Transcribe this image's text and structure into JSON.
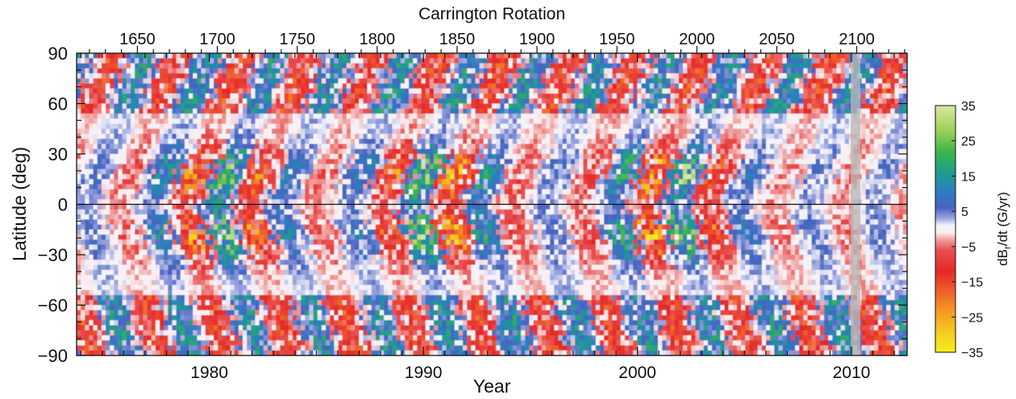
{
  "chart_data": {
    "type": "heatmap",
    "title": "",
    "top_axis": {
      "label": "Carrington Rotation",
      "ticks": [
        1650,
        1700,
        1750,
        1800,
        1850,
        1900,
        1950,
        2000,
        2050,
        2100
      ],
      "tick_labels": [
        "1650",
        "1700",
        "1750",
        "1800",
        "1850",
        "1900",
        "1950",
        "2000",
        "2050",
        "2100"
      ],
      "minor_step": 10
    },
    "xlabel": "Year",
    "x_ticks": [
      1980,
      1990,
      2000,
      2010
    ],
    "x_tick_labels": [
      "1980",
      "1990",
      "2000",
      "2010"
    ],
    "xlim": [
      1973.8,
      2012.6
    ],
    "ylabel": "Latitude (deg)",
    "y_ticks": [
      90,
      60,
      30,
      0,
      -30,
      -60,
      -90
    ],
    "y_tick_labels": [
      "90",
      "60",
      "30",
      "0",
      "−30",
      "−60",
      "−90"
    ],
    "ylim": [
      -90,
      90
    ],
    "colorbar": {
      "label_main": "dB",
      "label_sub": "r",
      "label_rest": "/dt (G/yr)",
      "ticks": [
        35,
        25,
        15,
        5,
        -5,
        -15,
        -25,
        -35
      ],
      "tick_labels": [
        "35",
        "25",
        "15",
        "5",
        "−5",
        "−15",
        "−25",
        "−35"
      ],
      "range": [
        -35,
        35
      ],
      "stops": [
        {
          "value": 35,
          "color": "#d8e8a0"
        },
        {
          "value": 28,
          "color": "#9fd05a"
        },
        {
          "value": 22,
          "color": "#3fb44a"
        },
        {
          "value": 16,
          "color": "#1f9d8a"
        },
        {
          "value": 11,
          "color": "#2a7fc0"
        },
        {
          "value": 6,
          "color": "#4a62c0"
        },
        {
          "value": 3,
          "color": "#9aa6e0"
        },
        {
          "value": 1,
          "color": "#f2f2fb"
        },
        {
          "value": -1,
          "color": "#fbf0f0"
        },
        {
          "value": -3,
          "color": "#f0a0a0"
        },
        {
          "value": -6,
          "color": "#e84f4f"
        },
        {
          "value": -12,
          "color": "#e42828"
        },
        {
          "value": -18,
          "color": "#f0622a"
        },
        {
          "value": -24,
          "color": "#f5a020"
        },
        {
          "value": -30,
          "color": "#f4d020"
        },
        {
          "value": -35,
          "color": "#f6ee18"
        }
      ]
    },
    "features": {
      "equator_line": 0,
      "data_gap_year": 2010,
      "cycle_maxima_years": [
        1980.5,
        1990.5,
        2001.5
      ],
      "grid": false,
      "legend": "colorbar right"
    }
  }
}
